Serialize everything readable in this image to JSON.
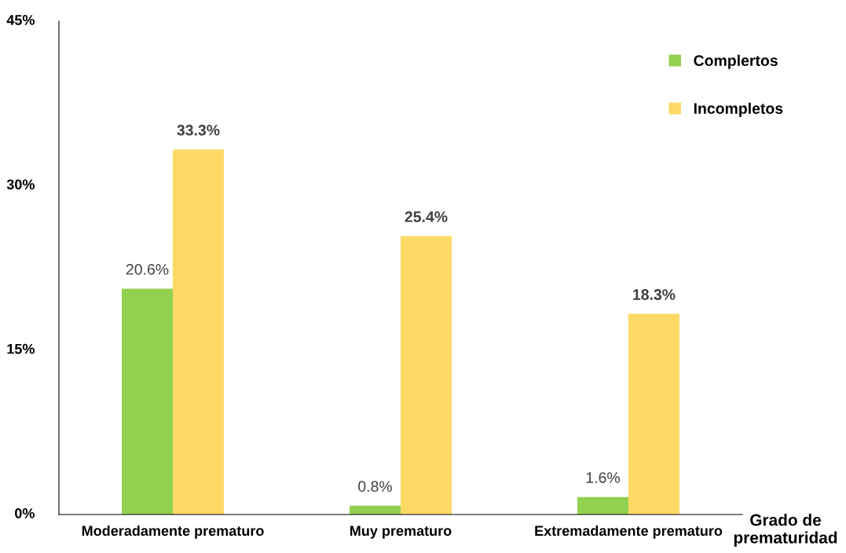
{
  "chart_data": {
    "type": "bar",
    "xlabel": "Grado de prematuridad",
    "categories": [
      "Moderadamente prematuro",
      "Muy prematuro",
      "Extremadamente prematuro"
    ],
    "series": [
      {
        "name": "Complertos",
        "color": "#92d050",
        "values": [
          20.6,
          0.8,
          1.6
        ],
        "value_labels": [
          "20.6%",
          "0.8%",
          "1.6%"
        ]
      },
      {
        "name": "Incompletos",
        "color": "#ffd966",
        "values": [
          33.3,
          25.4,
          18.3
        ],
        "value_labels": [
          "33.3%",
          "25.4%",
          "18.3%"
        ]
      }
    ],
    "ylim": [
      0,
      45
    ],
    "yticks": [
      {
        "value": 0,
        "label": "0%"
      },
      {
        "value": 15,
        "label": "15%"
      },
      {
        "value": 30,
        "label": "30%"
      },
      {
        "value": 45,
        "label": "45%"
      }
    ],
    "grid": false,
    "legend": "top right"
  }
}
